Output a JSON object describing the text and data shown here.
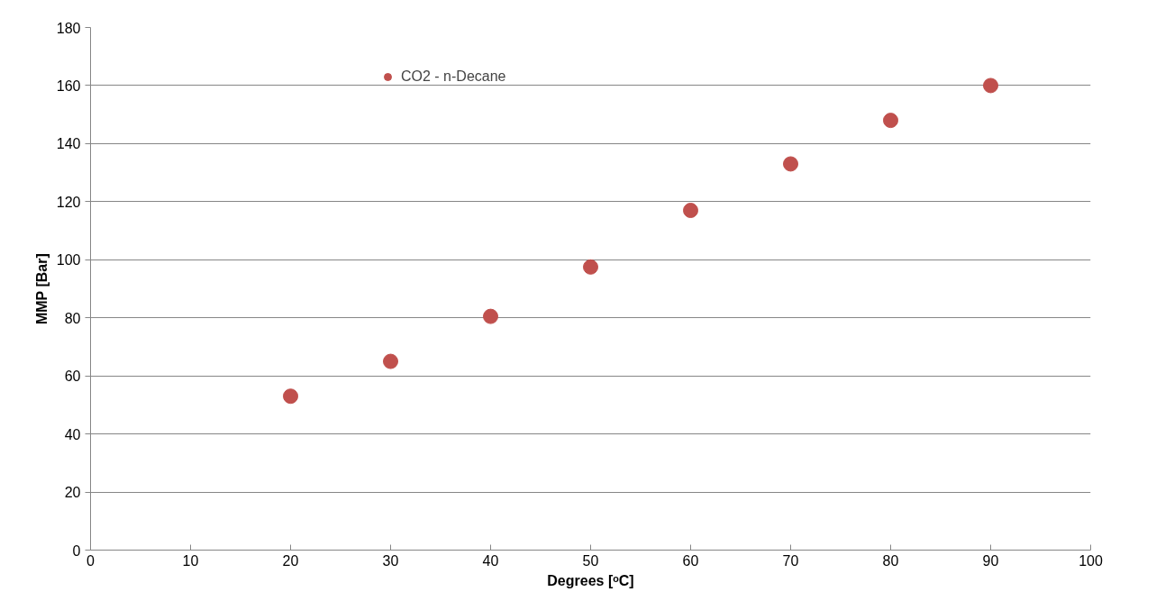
{
  "chart_data": {
    "type": "scatter",
    "xlabel": "Degrees [ᵒC]",
    "ylabel": "MMP [Bar]",
    "x": [
      20,
      30,
      40,
      50,
      60,
      70,
      80,
      90
    ],
    "series": [
      {
        "name": "CO2 - n-Decane",
        "color": "#c0504d",
        "values": [
          53,
          65,
          80.5,
          97.5,
          117,
          133,
          148,
          160
        ]
      }
    ],
    "xlim": [
      0,
      100
    ],
    "xticks": [
      0,
      10,
      20,
      30,
      40,
      50,
      60,
      70,
      80,
      90,
      100
    ],
    "ylim": [
      0,
      180
    ],
    "yticks": [
      0,
      20,
      40,
      60,
      80,
      100,
      120,
      140,
      160,
      180
    ],
    "grid": "y",
    "legend": "top left",
    "marker": "circle"
  }
}
